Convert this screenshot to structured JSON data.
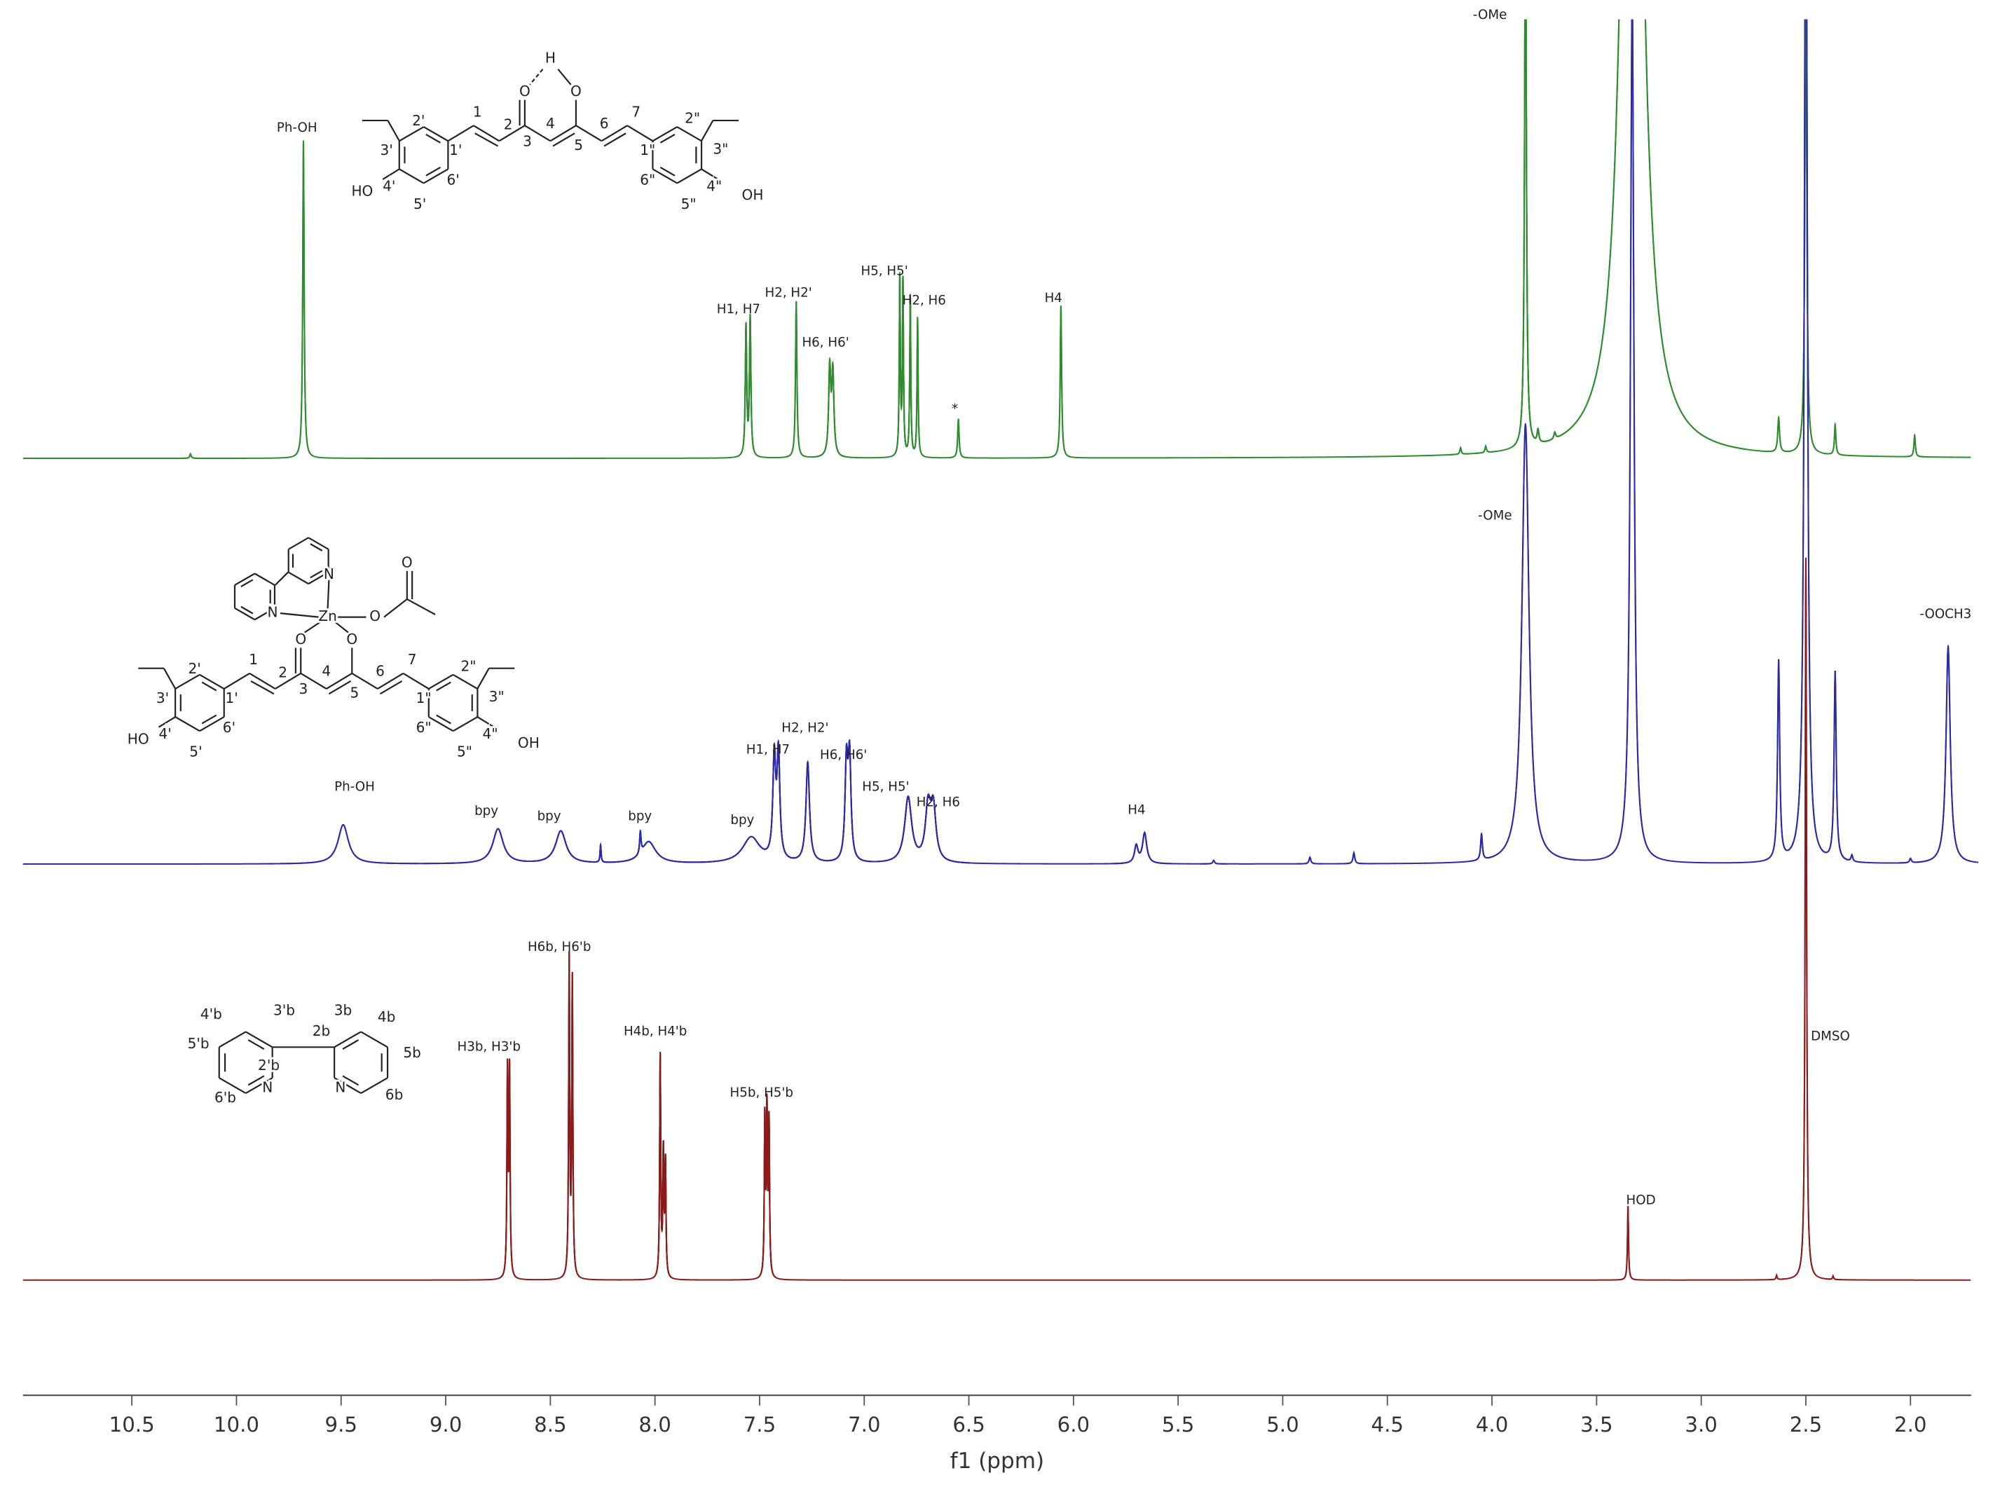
{
  "chart_data": {
    "type": "nmr",
    "x_label": "f1 (ppm)",
    "xlim": [
      11.02,
      1.71
    ],
    "xticks": [
      10.5,
      {
        "value": 10,
        "label": "10.0"
      },
      9.5,
      {
        "value": 9,
        "label": "9.0"
      },
      8.5,
      {
        "value": 8,
        "label": "8.0"
      },
      7.5,
      {
        "value": 7,
        "label": "7.0"
      },
      6.5,
      {
        "value": 6,
        "label": "6.0"
      },
      5.5,
      {
        "value": 5,
        "label": "5.0"
      },
      4.5,
      {
        "value": 4,
        "label": "4.0"
      },
      3.5,
      {
        "value": 3,
        "label": "3.0"
      },
      2.5,
      {
        "value": 2,
        "label": "2.0"
      }
    ],
    "spectra": [
      {
        "color": "#2e8b2e",
        "ppm": [
          10.22,
          9.68,
          7.565,
          7.545,
          7.325,
          7.165,
          7.15,
          6.83,
          6.815,
          6.78,
          6.745,
          6.55,
          6.06,
          4.15,
          4.03,
          3.84,
          3.78,
          3.7,
          3.33,
          2.63,
          2.5,
          2.36,
          1.98
        ],
        "heights": [
          1,
          73,
          30,
          32,
          36,
          20,
          19,
          41,
          40,
          37,
          32,
          9,
          35,
          1.5,
          1.5,
          130,
          3,
          1.5,
          300,
          8,
          120,
          7,
          5
        ],
        "widths": [
          0.004,
          0.004,
          0.004,
          0.004,
          0.004,
          0.006,
          0.006,
          0.003,
          0.003,
          0.003,
          0.003,
          0.004,
          0.004,
          0.004,
          0.004,
          0.005,
          0.005,
          0.005,
          0.045,
          0.005,
          0.005,
          0.004,
          0.004
        ],
        "labels": [
          "Ph-OH",
          "H1, H7",
          "H2, H2'",
          "H6, H6'",
          "H5, H5'",
          "H2, H6",
          "*",
          "H4",
          "-OMe"
        ],
        "structure_labels": [
          "H",
          "O",
          "O",
          "1",
          "2",
          "3",
          "4",
          "5",
          "6",
          "7",
          "2'",
          "3'",
          "1'",
          "6'",
          "5'",
          "4'",
          "HO",
          "2\"",
          "3\"",
          "1\"",
          "6\"",
          "5\"",
          "4\"",
          "OH"
        ]
      },
      {
        "color": "#2b2ba8",
        "ppm": [
          9.49,
          8.75,
          8.45,
          8.26,
          8.07,
          8.03,
          7.54,
          7.43,
          7.41,
          7.27,
          7.085,
          7.07,
          6.79,
          6.695,
          6.67,
          5.7,
          5.66,
          5.33,
          4.87,
          4.66,
          4.05,
          3.84,
          3.33,
          2.63,
          2.5,
          2.36,
          2.28,
          2.0,
          1.82
        ],
        "heights": [
          9,
          8,
          7.5,
          4,
          5,
          5,
          6,
          23,
          24,
          23,
          22,
          23,
          15,
          12,
          12,
          4,
          7,
          0.8,
          1.5,
          2.5,
          6,
          101,
          200,
          46,
          260,
          43.5,
          1.5,
          1,
          50
        ],
        "widths": [
          0.03,
          0.03,
          0.03,
          0.003,
          0.004,
          0.04,
          0.05,
          0.008,
          0.008,
          0.01,
          0.008,
          0.008,
          0.02,
          0.015,
          0.015,
          0.01,
          0.012,
          0.005,
          0.005,
          0.005,
          0.005,
          0.02,
          0.01,
          0.006,
          0.008,
          0.006,
          0.005,
          0.005,
          0.012
        ],
        "labels": [
          "Ph-OH",
          "bpy",
          "bpy",
          "bpy",
          "bpy",
          "H1, H7",
          "H2, H2'",
          "H6, H6'",
          "H5, H5'",
          "H2, H6",
          "H4",
          "-OMe",
          "-OOCH3"
        ],
        "structure_labels": [
          "N",
          "N",
          "Zn",
          "O",
          "O",
          "O",
          "O",
          "1",
          "2",
          "3",
          "4",
          "5",
          "6",
          "7",
          "2'",
          "3'",
          "1'",
          "6'",
          "5'",
          "4'",
          "HO",
          "2\"",
          "3\"",
          "1\"",
          "6\"",
          "5\"",
          "4\"",
          "OH"
        ]
      },
      {
        "color": "#8b1a1a",
        "ppm": [
          8.705,
          8.695,
          8.41,
          8.395,
          7.975,
          7.96,
          7.95,
          7.475,
          7.465,
          7.455,
          3.35,
          2.64,
          2.5,
          2.37
        ],
        "heights": [
          47,
          47,
          73,
          68,
          51,
          28,
          26,
          36,
          37,
          35,
          17,
          1,
          166,
          0.8
        ],
        "widths": [
          0.003,
          0.003,
          0.003,
          0.003,
          0.003,
          0.003,
          0.003,
          0.003,
          0.003,
          0.003,
          0.003,
          0.003,
          0.004,
          0.003
        ],
        "labels": [
          "H6b, H6'b",
          "H3b, H3'b",
          "H4b, H4'b",
          "H5b, H5'b",
          "HOD",
          "DMSO"
        ],
        "structure_labels": [
          "4'b",
          "3'b",
          "3b",
          "4b",
          "5'b",
          "2b",
          "5b",
          "2'b",
          "6'b",
          "N",
          "N",
          "6b"
        ]
      }
    ]
  }
}
